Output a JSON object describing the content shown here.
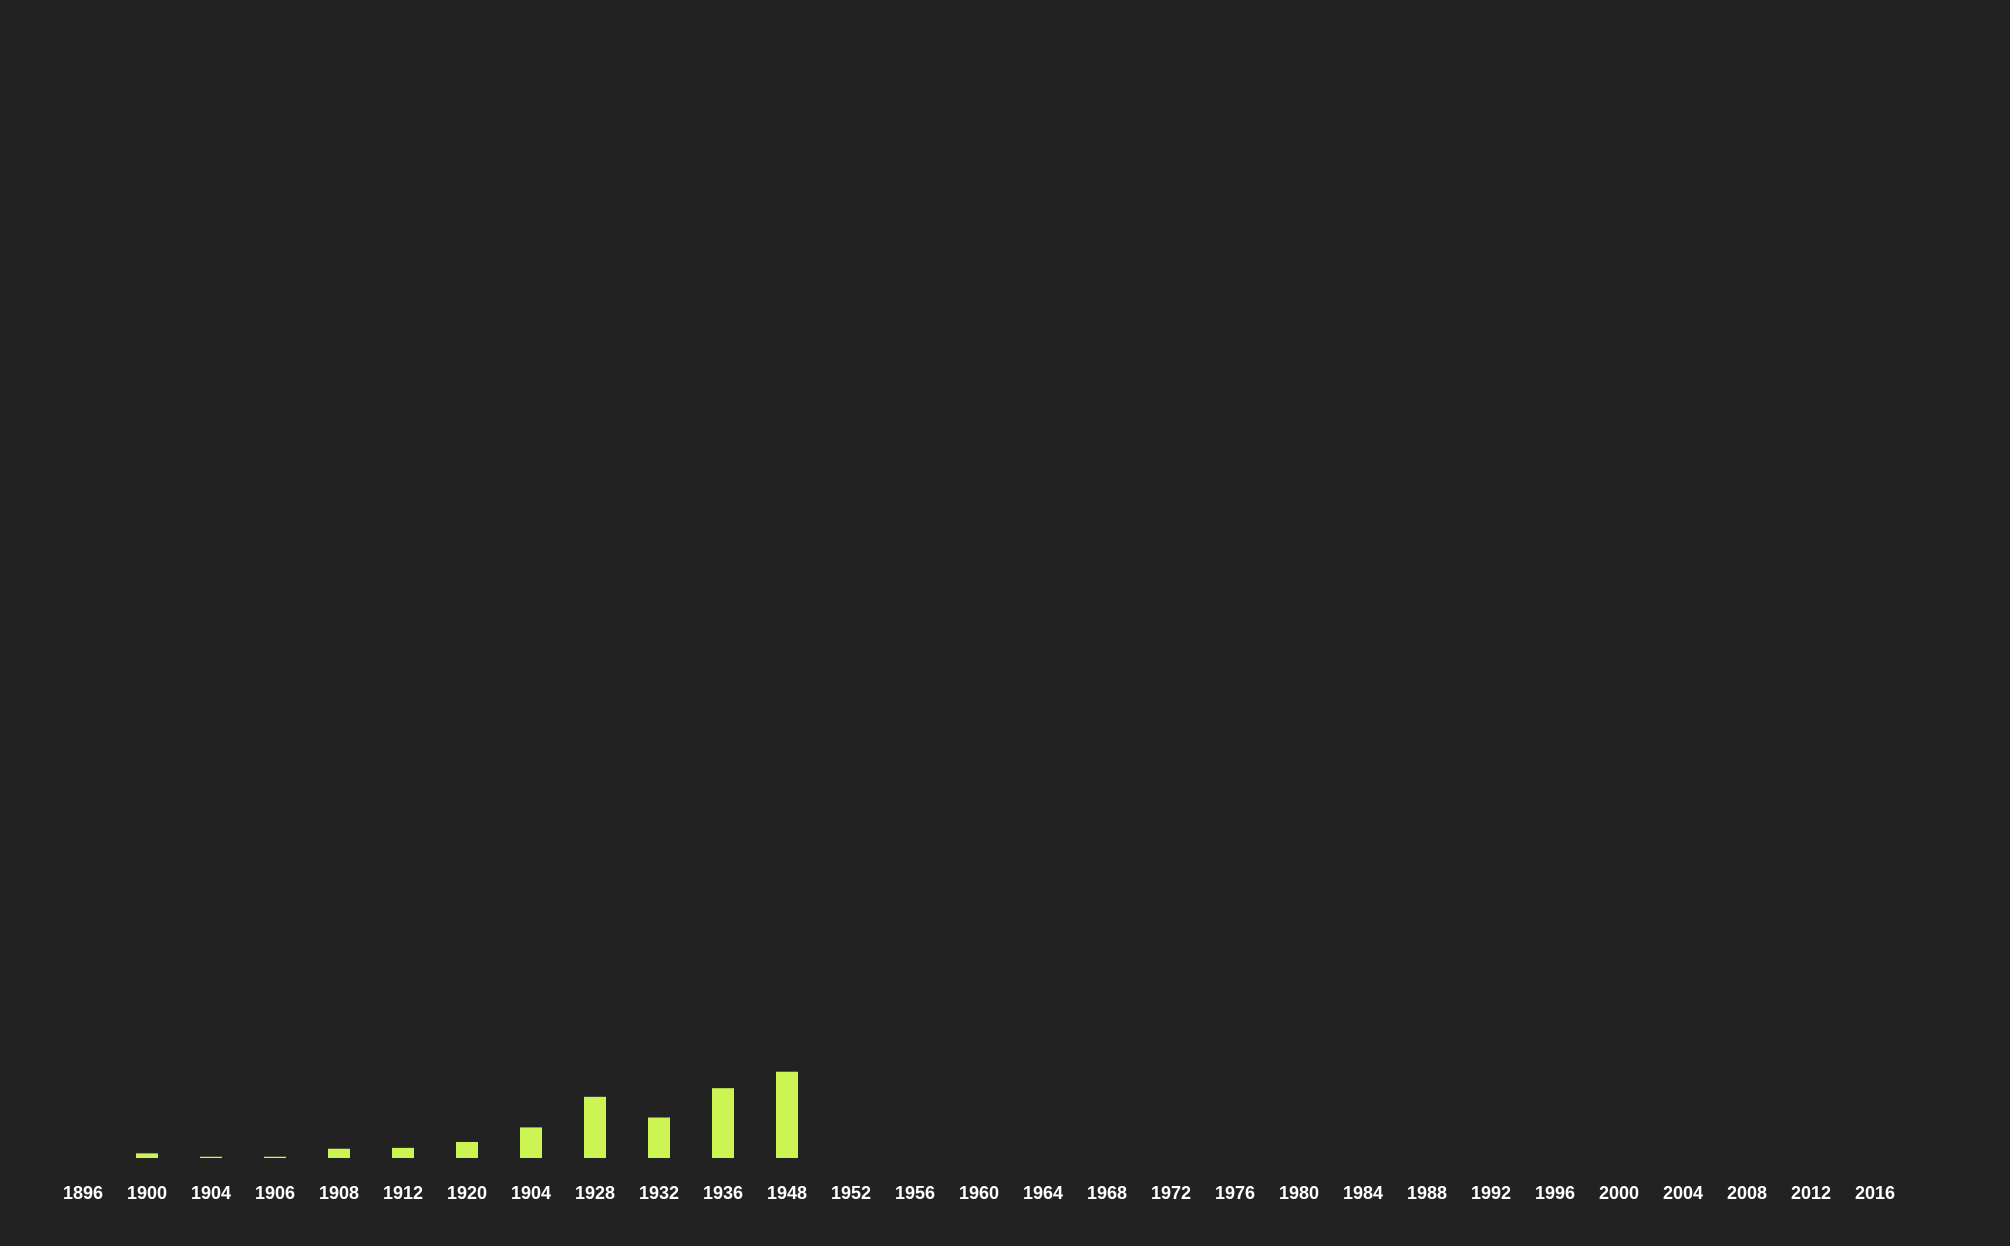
{
  "colors": {
    "background": "#222222",
    "bar": "#ccf553",
    "tick_text": "#ffffff"
  },
  "chart_data": {
    "type": "bar",
    "title": "",
    "xlabel": "",
    "ylabel": "",
    "grid": false,
    "legend": "none",
    "categories": [
      "1896",
      "1900",
      "1904",
      "1906",
      "1908",
      "1912",
      "1920",
      "1904",
      "1928",
      "1932",
      "1936",
      "1948",
      "1952",
      "1956",
      "1960",
      "1964",
      "1968",
      "1972",
      "1976",
      "1980",
      "1984",
      "1988",
      "1992",
      "1996",
      "2000",
      "2004",
      "2008",
      "2012",
      "2016"
    ],
    "values": [
      0,
      22,
      6,
      6,
      44,
      48,
      76,
      145,
      290,
      192,
      331,
      409,
      null,
      null,
      null,
      null,
      null,
      null,
      null,
      null,
      null,
      null,
      null,
      null,
      null,
      null,
      null,
      null,
      null
    ],
    "ylim": [
      0,
      5300
    ]
  }
}
